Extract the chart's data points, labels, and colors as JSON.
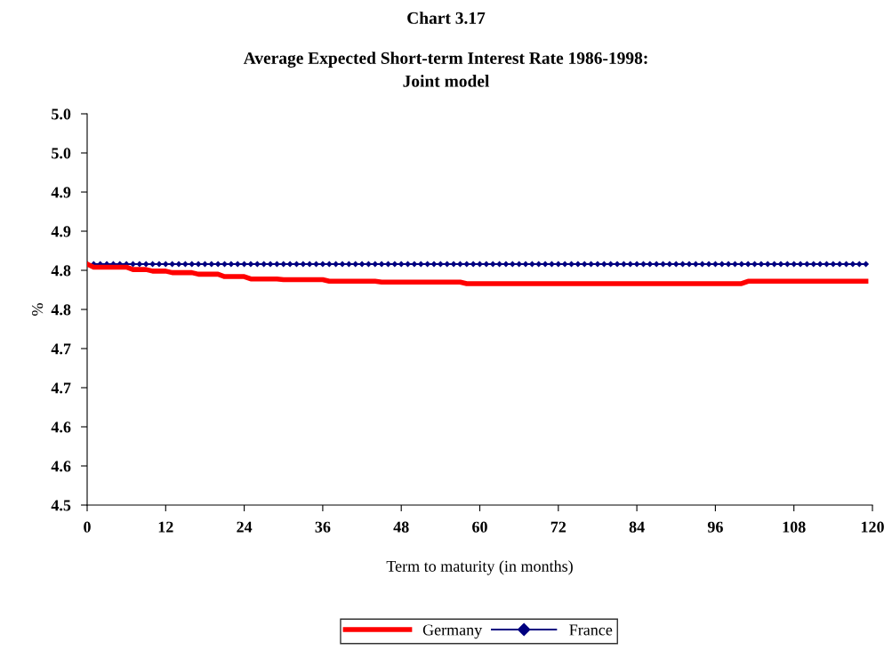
{
  "chart_data": {
    "type": "line",
    "title": "Chart 3.17",
    "subtitle": "Average Expected Short-term Interest Rate 1986-1998:\nJoint model",
    "xlabel": "Term to maturity (in months)",
    "ylabel": "%",
    "x": [
      0,
      1,
      2,
      3,
      4,
      5,
      6,
      7,
      8,
      9,
      10,
      11,
      12,
      13,
      14,
      15,
      16,
      17,
      18,
      19,
      20,
      21,
      22,
      23,
      24,
      25,
      26,
      27,
      28,
      29,
      30,
      31,
      32,
      33,
      34,
      35,
      36,
      37,
      38,
      39,
      40,
      41,
      42,
      43,
      44,
      45,
      46,
      47,
      48,
      49,
      50,
      51,
      52,
      53,
      54,
      55,
      56,
      57,
      58,
      59,
      60,
      61,
      62,
      63,
      64,
      65,
      66,
      67,
      68,
      69,
      70,
      71,
      72,
      73,
      74,
      75,
      76,
      77,
      78,
      79,
      80,
      81,
      82,
      83,
      84,
      85,
      86,
      87,
      88,
      89,
      90,
      91,
      92,
      93,
      94,
      95,
      96,
      97,
      98,
      99,
      100,
      101,
      102,
      103,
      104,
      105,
      106,
      107,
      108,
      109,
      110,
      111,
      112,
      113,
      114,
      115,
      116,
      117,
      118,
      119
    ],
    "series": [
      {
        "name": "Germany",
        "color": "#ff0000",
        "marker": "none",
        "values": [
          4.808,
          4.804,
          4.804,
          4.804,
          4.804,
          4.804,
          4.804,
          4.801,
          4.801,
          4.801,
          4.799,
          4.799,
          4.799,
          4.797,
          4.797,
          4.797,
          4.797,
          4.795,
          4.795,
          4.795,
          4.795,
          4.792,
          4.792,
          4.792,
          4.792,
          4.789,
          4.789,
          4.789,
          4.789,
          4.789,
          4.788,
          4.788,
          4.788,
          4.788,
          4.788,
          4.788,
          4.788,
          4.786,
          4.786,
          4.786,
          4.786,
          4.786,
          4.786,
          4.786,
          4.786,
          4.785,
          4.785,
          4.785,
          4.785,
          4.785,
          4.785,
          4.785,
          4.785,
          4.785,
          4.785,
          4.785,
          4.785,
          4.785,
          4.783,
          4.783,
          4.783,
          4.783,
          4.783,
          4.783,
          4.783,
          4.783,
          4.783,
          4.783,
          4.783,
          4.783,
          4.783,
          4.783,
          4.783,
          4.783,
          4.783,
          4.783,
          4.783,
          4.783,
          4.783,
          4.783,
          4.783,
          4.783,
          4.783,
          4.783,
          4.783,
          4.783,
          4.783,
          4.783,
          4.783,
          4.783,
          4.783,
          4.783,
          4.783,
          4.783,
          4.783,
          4.783,
          4.783,
          4.783,
          4.783,
          4.783,
          4.783,
          4.786,
          4.786,
          4.786,
          4.786,
          4.786,
          4.786,
          4.786,
          4.786,
          4.786,
          4.786,
          4.786,
          4.786,
          4.786,
          4.786,
          4.786,
          4.786,
          4.786,
          4.786,
          4.786
        ]
      },
      {
        "name": "France",
        "color": "#000080",
        "marker": "diamond",
        "values": [
          4.808,
          4.808,
          4.808,
          4.808,
          4.808,
          4.808,
          4.808,
          4.808,
          4.808,
          4.808,
          4.808,
          4.808,
          4.808,
          4.808,
          4.808,
          4.808,
          4.808,
          4.808,
          4.808,
          4.808,
          4.808,
          4.808,
          4.808,
          4.808,
          4.808,
          4.808,
          4.808,
          4.808,
          4.808,
          4.808,
          4.808,
          4.808,
          4.808,
          4.808,
          4.808,
          4.808,
          4.808,
          4.808,
          4.808,
          4.808,
          4.808,
          4.808,
          4.808,
          4.808,
          4.808,
          4.808,
          4.808,
          4.808,
          4.808,
          4.808,
          4.808,
          4.808,
          4.808,
          4.808,
          4.808,
          4.808,
          4.808,
          4.808,
          4.808,
          4.808,
          4.808,
          4.808,
          4.808,
          4.808,
          4.808,
          4.808,
          4.808,
          4.808,
          4.808,
          4.808,
          4.808,
          4.808,
          4.808,
          4.808,
          4.808,
          4.808,
          4.808,
          4.808,
          4.808,
          4.808,
          4.808,
          4.808,
          4.808,
          4.808,
          4.808,
          4.808,
          4.808,
          4.808,
          4.808,
          4.808,
          4.808,
          4.808,
          4.808,
          4.808,
          4.808,
          4.808,
          4.808,
          4.808,
          4.808,
          4.808,
          4.808,
          4.808,
          4.808,
          4.808,
          4.808,
          4.808,
          4.808,
          4.808,
          4.808,
          4.808,
          4.808,
          4.808,
          4.808,
          4.808,
          4.808,
          4.808,
          4.808,
          4.808,
          4.808,
          4.808
        ]
      }
    ],
    "xlim": [
      0,
      120
    ],
    "xticks": [
      0,
      12,
      24,
      36,
      48,
      60,
      72,
      84,
      96,
      108,
      120
    ],
    "ylim": [
      4.5,
      5.0
    ],
    "yticks": [
      {
        "value": 4.5,
        "label": "4.5"
      },
      {
        "value": 4.55,
        "label": "4.6"
      },
      {
        "value": 4.6,
        "label": "4.6"
      },
      {
        "value": 4.65,
        "label": "4.7"
      },
      {
        "value": 4.7,
        "label": "4.7"
      },
      {
        "value": 4.75,
        "label": "4.8"
      },
      {
        "value": 4.8,
        "label": "4.8"
      },
      {
        "value": 4.85,
        "label": "4.9"
      },
      {
        "value": 4.9,
        "label": "4.9"
      },
      {
        "value": 4.95,
        "label": "5.0"
      },
      {
        "value": 5.0,
        "label": "5.0"
      }
    ],
    "grid": false,
    "legend": "bottom",
    "line_style": "solid"
  }
}
